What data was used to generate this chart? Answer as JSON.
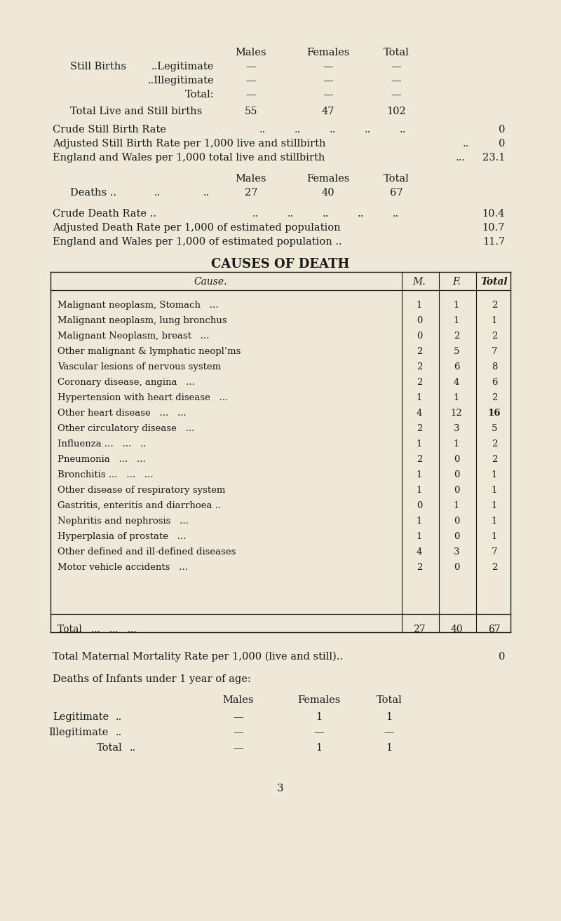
{
  "bg_color": "#ede8d8",
  "text_color": "#1a1a1a",
  "page_number": "3",
  "causes_title": "CAUSES OF DEATH",
  "causes_rows": [
    [
      "Malignant neoplasm, Stomach   ...",
      "1",
      "1",
      "2",
      false
    ],
    [
      "Malignant neoplasm, lung bronchus",
      "0",
      "1",
      "1",
      false
    ],
    [
      "Malignant Neoplasm, breast   ...",
      "0",
      "2",
      "2",
      false
    ],
    [
      "Other malignant & lymphatic neopl’ms",
      "2",
      "5",
      "7",
      false
    ],
    [
      "Vascular lesions of nervous system",
      "2",
      "6",
      "8",
      false
    ],
    [
      "Coronary disease, angina   ...",
      "2",
      "4",
      "6",
      false
    ],
    [
      "Hypertension with heart disease   ...",
      "1",
      "1",
      "2",
      false
    ],
    [
      "Other heart disease   ...   ...",
      "4",
      "12",
      "16",
      true
    ],
    [
      "Other circulatory disease   ...",
      "2",
      "3",
      "5",
      false
    ],
    [
      "Influenza ...   ...   ..",
      "1",
      "1",
      "2",
      false
    ],
    [
      "Pneumonia   ...   ...",
      "2",
      "0",
      "2",
      false
    ],
    [
      "Bronchitis ...   ...   ...",
      "1",
      "0",
      "1",
      false
    ],
    [
      "Other disease of respiratory system",
      "1",
      "0",
      "1",
      false
    ],
    [
      "Gastritis, enteritis and diarrhoea ..",
      "0",
      "1",
      "1",
      false
    ],
    [
      "Nephritis and nephrosis   ...",
      "1",
      "0",
      "1",
      false
    ],
    [
      "Hyperplasia of prostate   ...",
      "1",
      "0",
      "1",
      false
    ],
    [
      "Other defined and ill-defined diseases",
      "4",
      "3",
      "7",
      false
    ],
    [
      "Motor vehicle accidents   ...",
      "2",
      "0",
      "2",
      false
    ]
  ],
  "causes_total": [
    "Total   ...   ...   ...",
    "27",
    "40",
    "67"
  ]
}
